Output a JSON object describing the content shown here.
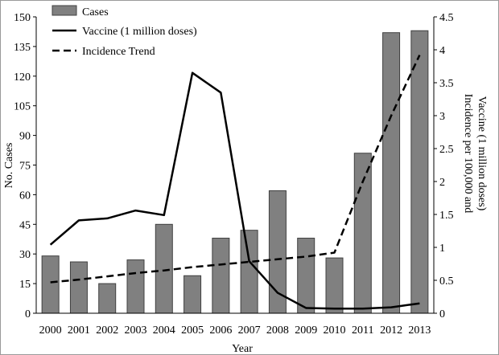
{
  "chart_data": {
    "type": "bar",
    "categories": [
      "2000",
      "2001",
      "2002",
      "2003",
      "2004",
      "2005",
      "2006",
      "2007",
      "2008",
      "2009",
      "2010",
      "2011",
      "2012",
      "2013"
    ],
    "series": [
      {
        "name": "Cases",
        "type": "bar",
        "axis": "left",
        "values": [
          29,
          26,
          15,
          27,
          45,
          19,
          38,
          42,
          62,
          38,
          28,
          81,
          142,
          143
        ]
      },
      {
        "name": "Vaccine (1 million doses)",
        "type": "line",
        "axis": "right",
        "values": [
          1.04,
          1.41,
          1.44,
          1.56,
          1.49,
          3.65,
          3.35,
          0.79,
          0.31,
          0.08,
          0.07,
          0.07,
          0.09,
          0.15
        ]
      },
      {
        "name": "Incidence Trend",
        "type": "line",
        "dash": "dashed",
        "axis": "right",
        "values": [
          0.47,
          0.51,
          0.56,
          0.61,
          0.65,
          0.7,
          0.74,
          0.78,
          0.82,
          0.86,
          0.92,
          2.0,
          3.0,
          3.92
        ]
      }
    ],
    "xlabel": "Year",
    "ylabel": "No. Cases",
    "ylabel_right_line1": "Incidence  per 100,000 and",
    "ylabel_right_line2": "Vaccine  (1 million  doses)",
    "ylim": [
      0,
      150
    ],
    "yticks": [
      0,
      15,
      30,
      45,
      60,
      75,
      90,
      105,
      120,
      135,
      150
    ],
    "ytick_labels": [
      "0",
      "15",
      "30",
      "45",
      "60",
      "75",
      "90",
      "105",
      "120",
      "135",
      "150"
    ],
    "ylim_right": [
      0,
      4.5
    ],
    "yticks_right": [
      0,
      0.5,
      1,
      1.5,
      2,
      2.5,
      3,
      3.5,
      4,
      4.5
    ],
    "ytick_labels_right": [
      "0",
      "0.5",
      "1",
      "1.5",
      "2",
      "2.5",
      "3",
      "3.5",
      "4",
      "4.5"
    ],
    "legend_position": "top-left",
    "grid": false,
    "colors": {
      "bar_fill": "#808080",
      "bar_stroke": "#404040",
      "line": "#000000"
    }
  }
}
